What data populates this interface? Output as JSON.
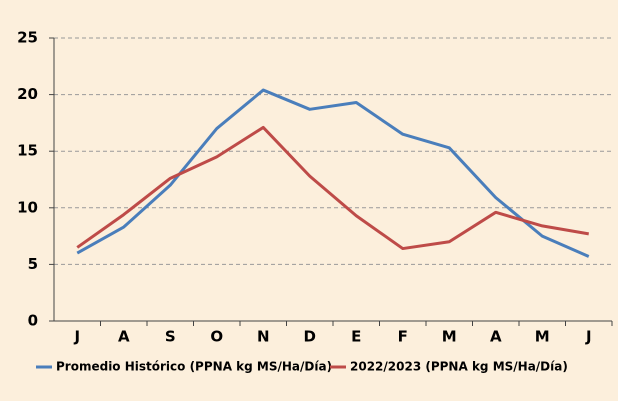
{
  "chart_data": {
    "type": "line",
    "categories": [
      "J",
      "A",
      "S",
      "O",
      "N",
      "D",
      "E",
      "F",
      "M",
      "A",
      "M",
      "J"
    ],
    "series": [
      {
        "name": "Promedio Histórico (PPNA kg MS/Ha/Día)",
        "color": "#4a7ebb",
        "values": [
          6.0,
          8.3,
          12.0,
          17.0,
          20.4,
          18.7,
          19.3,
          16.5,
          15.3,
          10.9,
          7.5,
          5.7
        ]
      },
      {
        "name": "2022/2023 (PPNA kg MS/Ha/Día)",
        "color": "#be4b48",
        "values": [
          6.5,
          9.4,
          12.6,
          14.5,
          17.1,
          12.8,
          9.3,
          6.4,
          7.0,
          9.6,
          8.4,
          7.7
        ]
      }
    ],
    "ylim": [
      0,
      25
    ],
    "yticks": [
      0,
      5,
      10,
      15,
      20,
      25
    ],
    "grid": true
  }
}
